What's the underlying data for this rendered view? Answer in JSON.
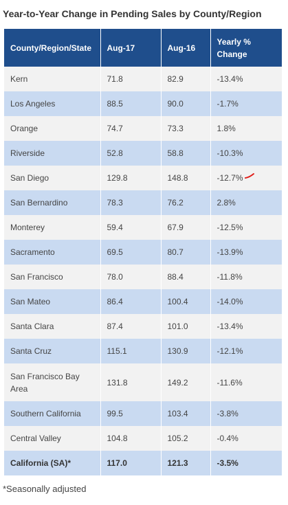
{
  "title": "Year-to-Year Change in Pending Sales by County/Region",
  "table": {
    "headers": [
      "County/Region/State",
      "Aug-17",
      "Aug-16",
      "Yearly % Change"
    ],
    "rows": [
      [
        "Kern",
        "71.8",
        "82.9",
        "-13.4%"
      ],
      [
        "Los Angeles",
        "88.5",
        "90.0",
        "-1.7%"
      ],
      [
        "Orange",
        "74.7",
        "73.3",
        "1.8%"
      ],
      [
        "Riverside",
        "52.8",
        "58.8",
        "-10.3%"
      ],
      [
        "San Diego",
        "129.8",
        "148.8",
        "-12.7%"
      ],
      [
        "San Bernardino",
        "78.3",
        "76.2",
        "2.8%"
      ],
      [
        "Monterey",
        "59.4",
        "67.9",
        "-12.5%"
      ],
      [
        "Sacramento",
        "69.5",
        "80.7",
        "-13.9%"
      ],
      [
        "San Francisco",
        "78.0",
        "88.4",
        "-11.8%"
      ],
      [
        "San Mateo",
        "86.4",
        "100.4",
        "-14.0%"
      ],
      [
        "Santa Clara",
        "87.4",
        "101.0",
        "-13.4%"
      ],
      [
        "Santa Cruz",
        "115.1",
        "130.9",
        "-12.1%"
      ],
      [
        "San Francisco Bay Area",
        "131.8",
        "149.2",
        "-11.6%"
      ],
      [
        "Southern California",
        "99.5",
        "103.4",
        "-3.8%"
      ],
      [
        "Central Valley",
        "104.8",
        "105.2",
        "-0.4%"
      ],
      [
        "California (SA)*",
        "117.0",
        "121.3",
        "-3.5%"
      ]
    ]
  },
  "footnote": "*Seasonally adjusted",
  "colors": {
    "header_bg": "#1f4e8c",
    "row_light": "#f2f2f2",
    "row_blue": "#c9daf1",
    "annotation": "#e0201b"
  }
}
